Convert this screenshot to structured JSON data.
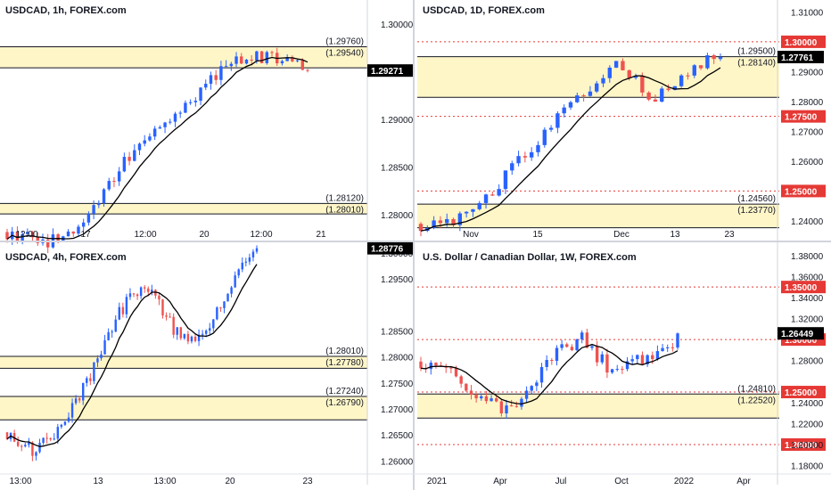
{
  "colors": {
    "up": "#2962ff",
    "up_alt": "#1e88e5",
    "down": "#ef5350",
    "zone_fill": "#fff6c8",
    "zone_line": "#131722",
    "ma": "#000000",
    "red_level": "#e53935",
    "last_price_bg": "#000000"
  },
  "chart_data": [
    {
      "type": "candlestick",
      "title": "USDCAD, 1h, FOREX.com",
      "x_ticks": [
        "12:00",
        "17",
        "12:00",
        "20",
        "12:00",
        "21"
      ],
      "y_ticks": [
        "1.30000",
        "1.29500",
        "1.29000",
        "1.28500",
        "1.28000"
      ],
      "ylim": [
        1.2775,
        1.3025
      ],
      "last_price": "1.29271",
      "zones": [
        {
          "top": 1.2976,
          "bottom": 1.2954,
          "top_label": "(1.29760)",
          "bottom_label": "(1.29540)"
        },
        {
          "top": 1.2812,
          "bottom": 1.2801,
          "top_label": "(1.28120)",
          "bottom_label": "(1.28010)"
        }
      ],
      "red_levels": [],
      "ohlc_start": 1.2782,
      "candle_count": 60
    },
    {
      "type": "candlestick",
      "title": "USDCAD, 1D, FOREX.com",
      "x_ticks": [
        "Nov",
        "15",
        "Dec",
        "13",
        "23"
      ],
      "y_ticks": [
        "1.31000",
        "1.29000",
        "1.28000",
        "1.27000",
        "1.26000",
        "1.24000"
      ],
      "ylim": [
        1.234,
        1.314
      ],
      "last_price": "1.27761",
      "zones": [
        {
          "top": 1.295,
          "bottom": 1.2814,
          "top_label": "(1.29500)",
          "bottom_label": "(1.28140)"
        },
        {
          "top": 1.2456,
          "bottom": 1.2377,
          "top_label": "(1.24560)",
          "bottom_label": "(1.23770)"
        }
      ],
      "red_levels": [
        {
          "value": 1.3,
          "label": "1.30000"
        },
        {
          "value": 1.275,
          "label": "1.27500"
        },
        {
          "value": 1.25,
          "label": "1.25000"
        }
      ],
      "ohlc_start": 1.239,
      "candle_count": 47
    },
    {
      "type": "candlestick",
      "title": "USDCAD, 4h, FOREX.com",
      "x_ticks": [
        "13:00",
        "13",
        "13:00",
        "20",
        "23"
      ],
      "y_ticks": [
        "1.30000",
        "1.29500",
        "1.28500",
        "1.28000",
        "1.27500",
        "1.27000",
        "1.26500",
        "1.26000"
      ],
      "ylim": [
        1.2575,
        1.3015
      ],
      "last_price": "1.28776",
      "zones": [
        {
          "top": 1.2801,
          "bottom": 1.2778,
          "top_label": "(1.28010)",
          "bottom_label": "(1.27780)"
        },
        {
          "top": 1.2724,
          "bottom": 1.2679,
          "top_label": "(1.27240)",
          "bottom_label": "(1.26790)"
        }
      ],
      "red_levels": [],
      "ohlc_start": 1.2655,
      "candle_count": 70
    },
    {
      "type": "candlestick",
      "title": "U.S. Dollar / Canadian Dollar, 1W, FOREX.com",
      "x_ticks": [
        "2021",
        "Apr",
        "Jul",
        "Oct",
        "2022",
        "Apr"
      ],
      "y_ticks": [
        "1.38000",
        "1.36000",
        "1.34000",
        "1.32000",
        "1.28000",
        "1.24000",
        "1.22000",
        "1.20000",
        "1.18000"
      ],
      "ylim": [
        1.172,
        1.39
      ],
      "last_price": "1.26449",
      "zones": [
        {
          "top": 1.2481,
          "bottom": 1.2252,
          "top_label": "(1.24810)",
          "bottom_label": "(1.22520)"
        }
      ],
      "red_levels": [
        {
          "value": 1.35,
          "label": "1.35000"
        },
        {
          "value": 1.3,
          "label": "1.30000"
        },
        {
          "value": 1.25,
          "label": "1.25000"
        },
        {
          "value": 1.2,
          "label": "1.20000"
        }
      ],
      "ohlc_start": 1.279,
      "candle_count": 52
    }
  ]
}
